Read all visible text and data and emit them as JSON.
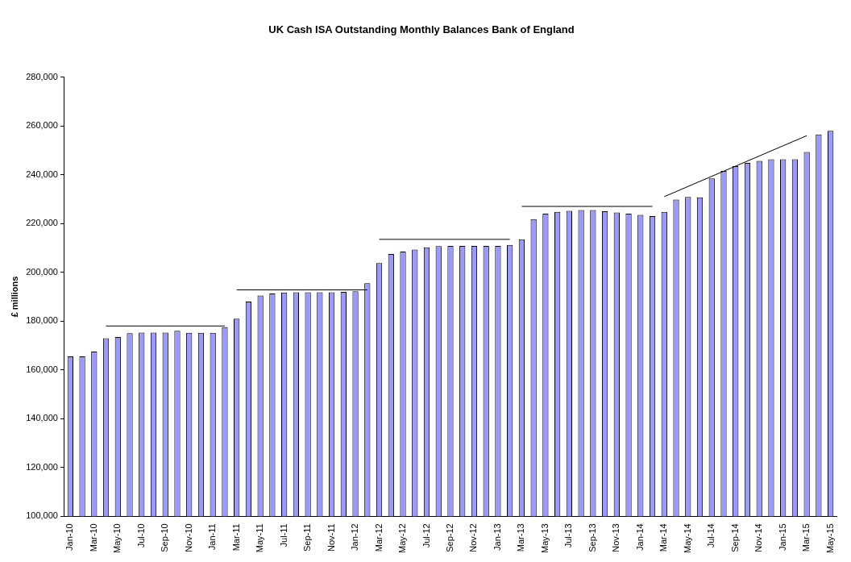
{
  "chart_data": {
    "type": "bar",
    "title": "UK Cash ISA Outstanding Monthly Balances Bank of England",
    "ylabel": "£ millions",
    "categories": [
      "Jan-10",
      null,
      "Mar-10",
      null,
      "May-10",
      null,
      "Jul-10",
      null,
      "Sep-10",
      null,
      "Nov-10",
      null,
      "Jan-11",
      null,
      "Mar-11",
      null,
      "May-11",
      null,
      "Jul-11",
      null,
      "Sep-11",
      null,
      "Nov-11",
      null,
      "Jan-12",
      null,
      "Mar-12",
      null,
      "May-12",
      null,
      "Jul-12",
      null,
      "Sep-12",
      null,
      "Nov-12",
      null,
      "Jan-13",
      null,
      "Mar-13",
      null,
      "May-13",
      null,
      "Jul-13",
      null,
      "Sep-13",
      null,
      "Nov-13",
      null,
      "Jan-14",
      null,
      "Mar-14",
      null,
      "May-14",
      null,
      "Jul-14",
      null,
      "Sep-14",
      null,
      "Nov-14",
      null,
      "Jan-15",
      null,
      "Mar-15",
      null,
      "May-15"
    ],
    "series": [
      {
        "color": "#9999ff",
        "values": [
          165500,
          165500,
          167500,
          173000,
          173500,
          175000,
          175300,
          175300,
          175300,
          176000,
          175200,
          175200,
          175200,
          177500,
          181000,
          188000,
          190500,
          191300,
          191700,
          191800,
          191800,
          191800,
          191800,
          192000,
          192200,
          195500,
          203800,
          207500,
          208500,
          209300,
          210200,
          210700,
          210800,
          210800,
          210800,
          210800,
          210800,
          211200,
          213500,
          221800,
          224000,
          224800,
          225200,
          225500,
          225500,
          225000,
          224500,
          224000,
          223500,
          223000,
          224800,
          229800,
          230900,
          230700,
          238500,
          241500,
          243500,
          244800,
          245700,
          246300,
          246300,
          246300,
          249300,
          256500,
          258000
        ]
      },
      {
        "type": "line",
        "color": "#000000",
        "values": [
          null,
          null,
          null,
          178000,
          null,
          null,
          null,
          null,
          null,
          null,
          null,
          null,
          null,
          178000,
          null,
          null,
          null,
          null,
          null,
          null,
          null,
          null,
          null,
          null,
          null,
          null,
          null,
          null,
          null,
          null,
          null,
          null,
          null,
          null,
          null,
          null,
          null,
          null,
          null,
          null,
          null,
          null,
          null,
          null,
          null,
          null,
          null,
          null,
          null,
          null,
          null,
          null,
          null,
          null,
          null,
          null,
          null,
          null,
          null,
          null,
          null,
          null,
          null,
          null,
          null
        ]
      },
      {
        "type": "line",
        "color": "#000000",
        "values": [
          null,
          null,
          null,
          null,
          null,
          null,
          null,
          null,
          null,
          null,
          null,
          null,
          null,
          null,
          192800,
          null,
          null,
          null,
          null,
          null,
          null,
          null,
          null,
          null,
          null,
          192800,
          null,
          null,
          null,
          null,
          null,
          null,
          null,
          null,
          null,
          null,
          null,
          null,
          null,
          null,
          null,
          null,
          null,
          null,
          null,
          null,
          null,
          null,
          null,
          null,
          null,
          null,
          null,
          null,
          null,
          null,
          null,
          null,
          null,
          null,
          null,
          null,
          null,
          null,
          null
        ]
      },
      {
        "type": "line",
        "color": "#000000",
        "values": [
          null,
          null,
          null,
          null,
          null,
          null,
          null,
          null,
          null,
          null,
          null,
          null,
          null,
          null,
          null,
          null,
          null,
          null,
          null,
          null,
          null,
          null,
          null,
          null,
          null,
          null,
          213500,
          null,
          null,
          null,
          null,
          null,
          null,
          null,
          null,
          null,
          null,
          213500,
          null,
          null,
          null,
          null,
          null,
          null,
          null,
          null,
          null,
          null,
          null,
          null,
          null,
          null,
          null,
          null,
          null,
          null,
          null,
          null,
          null,
          null,
          null,
          null,
          null,
          null,
          null
        ]
      },
      {
        "type": "line",
        "color": "#000000",
        "values": [
          null,
          null,
          null,
          null,
          null,
          null,
          null,
          null,
          null,
          null,
          null,
          null,
          null,
          null,
          null,
          null,
          null,
          null,
          null,
          null,
          null,
          null,
          null,
          null,
          null,
          null,
          null,
          null,
          null,
          null,
          null,
          null,
          null,
          null,
          null,
          null,
          null,
          null,
          227000,
          null,
          null,
          null,
          null,
          null,
          null,
          null,
          null,
          null,
          null,
          227000,
          null,
          null,
          null,
          null,
          null,
          null,
          null,
          null,
          null,
          null,
          null,
          null,
          null,
          null,
          null
        ]
      },
      {
        "type": "line",
        "color": "#000000",
        "values": [
          null,
          null,
          null,
          null,
          null,
          null,
          null,
          null,
          null,
          null,
          null,
          null,
          null,
          null,
          null,
          null,
          null,
          null,
          null,
          null,
          null,
          null,
          null,
          null,
          null,
          null,
          null,
          null,
          null,
          null,
          null,
          null,
          null,
          null,
          null,
          null,
          null,
          null,
          null,
          null,
          null,
          null,
          null,
          null,
          null,
          null,
          null,
          null,
          null,
          null,
          231000,
          null,
          null,
          null,
          null,
          null,
          null,
          null,
          null,
          null,
          null,
          null,
          256000,
          null,
          null
        ]
      }
    ],
    "ylim": [
      100000,
      280000
    ],
    "yticks": [
      {
        "value": 100000,
        "label": "100,000"
      },
      {
        "value": 120000,
        "label": "120,000"
      },
      {
        "value": 140000,
        "label": "140,000"
      },
      {
        "value": 160000,
        "label": "160,000"
      },
      {
        "value": 180000,
        "label": "180,000"
      },
      {
        "value": 200000,
        "label": "200,000"
      },
      {
        "value": 220000,
        "label": "220,000"
      },
      {
        "value": 240000,
        "label": "240,000"
      },
      {
        "value": 260000,
        "label": "260,000"
      },
      {
        "value": 280000,
        "label": "280,000"
      }
    ],
    "grid": false,
    "legend": false,
    "marker": "none"
  }
}
